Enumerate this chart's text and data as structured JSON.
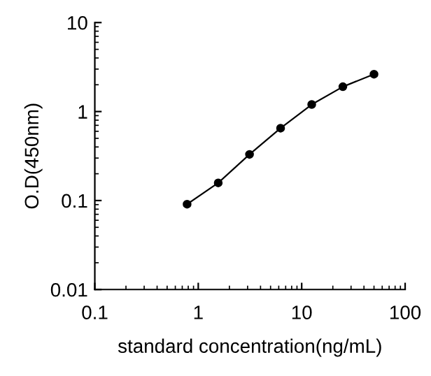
{
  "chart_data": {
    "type": "line",
    "xlabel": "standard concentration(ng/mL)",
    "ylabel": "O.D(450nm)",
    "x": [
      0.78,
      1.56,
      3.13,
      6.25,
      12.5,
      25,
      50
    ],
    "series": [
      {
        "color": "#000000",
        "values": [
          0.091,
          0.158,
          0.33,
          0.65,
          1.2,
          1.9,
          2.63
        ]
      }
    ],
    "log": "xy",
    "xlim": [
      0.1,
      100
    ],
    "ylim": [
      0.01,
      10
    ],
    "xticks": [
      0.1,
      1,
      10,
      100
    ],
    "yticks": [
      0.01,
      0.1,
      1,
      10
    ],
    "marker": "circle",
    "line_style": "solid",
    "grid": false,
    "legend": false
  }
}
